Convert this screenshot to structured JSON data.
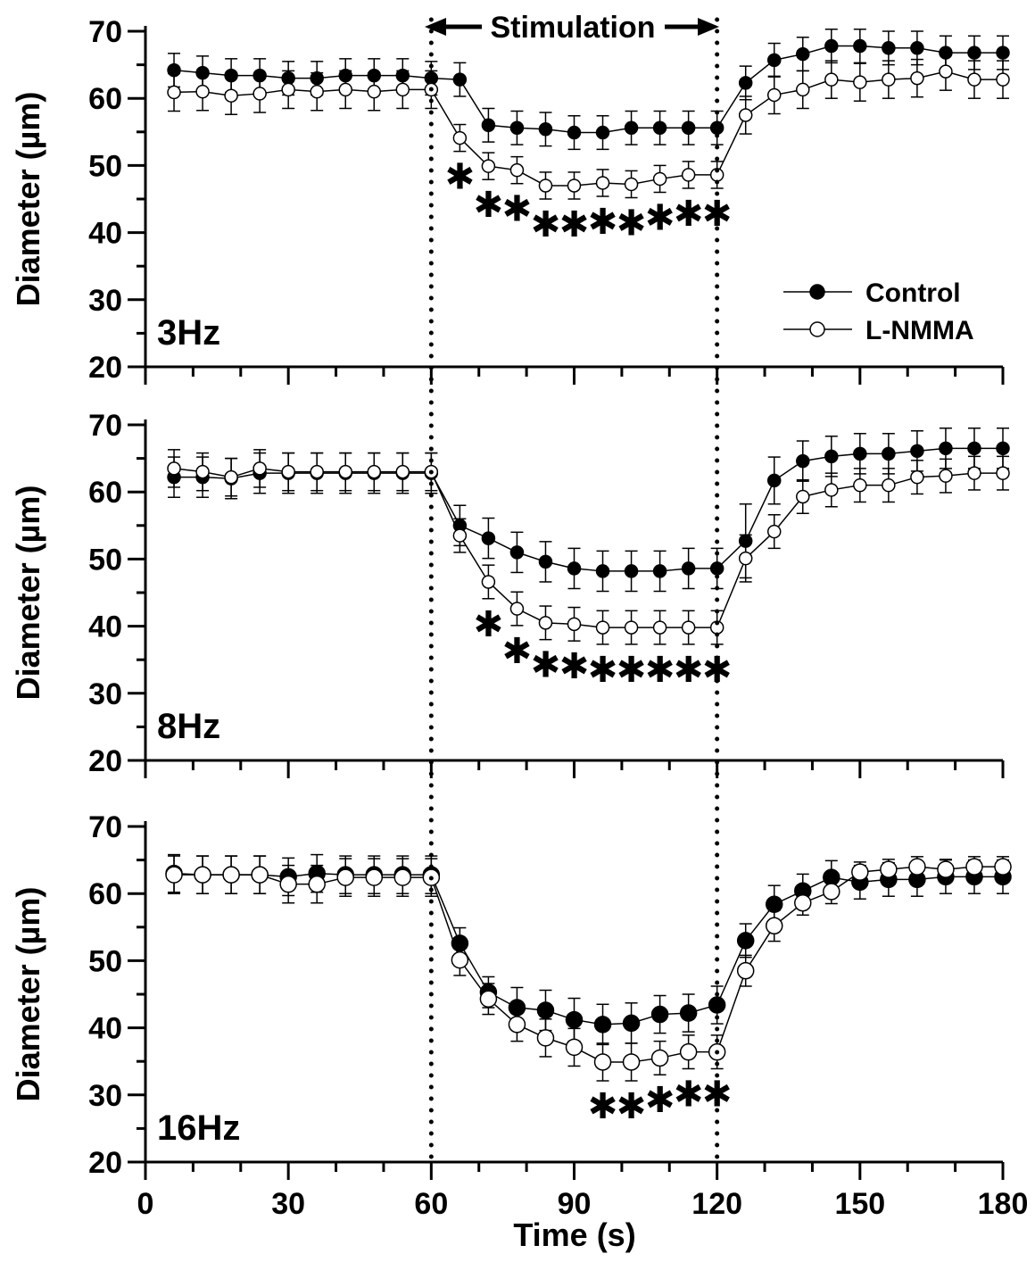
{
  "chart_data": {
    "type": "line",
    "xlabel": "Time (s)",
    "ylabel": "Diameter (µm)",
    "xlim": [
      0,
      180
    ],
    "xticks": [
      0,
      30,
      60,
      90,
      120,
      150,
      180
    ],
    "ylim": [
      20,
      70
    ],
    "yticks": [
      20,
      30,
      40,
      50,
      60,
      70
    ],
    "stimulation": {
      "label": "Stimulation",
      "start": 60,
      "end": 120
    },
    "legend": {
      "position": "lower-right of top panel",
      "entries": [
        "Control",
        "L-NMMA"
      ]
    },
    "x": [
      6,
      12,
      18,
      24,
      30,
      36,
      42,
      48,
      54,
      60,
      66,
      72,
      78,
      84,
      90,
      96,
      102,
      108,
      114,
      120,
      126,
      132,
      138,
      144,
      150,
      156,
      162,
      168,
      174,
      180
    ],
    "panels": [
      {
        "label": "3Hz",
        "series": [
          {
            "name": "Control",
            "marker": "filled",
            "values": [
              64.2,
              63.8,
              63.4,
              63.4,
              63.0,
              63.0,
              63.4,
              63.4,
              63.4,
              63.0,
              62.8,
              56.0,
              55.6,
              55.4,
              54.9,
              54.9,
              55.6,
              55.6,
              55.6,
              55.6,
              62.3,
              65.7,
              66.6,
              67.8,
              67.8,
              67.5,
              67.5,
              66.8,
              66.8,
              66.8
            ],
            "errors": [
              2.5,
              2.5,
              2.5,
              2.5,
              2.5,
              2.5,
              2.5,
              2.5,
              2.5,
              2.5,
              2.5,
              2.5,
              2.5,
              2.5,
              2.5,
              2.5,
              2.5,
              2.5,
              2.5,
              2.5,
              2.5,
              2.5,
              2.5,
              2.5,
              2.5,
              2.5,
              2.5,
              2.5,
              2.5,
              2.5
            ]
          },
          {
            "name": "L-NMMA",
            "marker": "open",
            "values": [
              60.9,
              61.0,
              60.4,
              60.7,
              61.3,
              61.0,
              61.3,
              61.0,
              61.3,
              61.3,
              54.1,
              49.9,
              49.3,
              47.0,
              47.0,
              47.4,
              47.2,
              48.0,
              48.6,
              48.6,
              57.5,
              60.5,
              61.3,
              62.8,
              62.4,
              62.8,
              63.0,
              64.0,
              62.8,
              62.8
            ],
            "errors": [
              2.8,
              2.8,
              2.8,
              2.8,
              2.8,
              2.8,
              2.8,
              2.8,
              2.8,
              2.8,
              2.0,
              2.0,
              2.0,
              2.0,
              2.0,
              2.0,
              2.0,
              2.0,
              2.0,
              2.0,
              2.8,
              2.8,
              2.8,
              2.8,
              2.8,
              2.8,
              2.8,
              2.8,
              2.8,
              2.8
            ]
          }
        ],
        "significance_x": [
          66,
          72,
          78,
          84,
          90,
          96,
          102,
          108,
          114,
          120
        ]
      },
      {
        "label": "8Hz",
        "series": [
          {
            "name": "Control",
            "marker": "filled",
            "values": [
              62.2,
              62.2,
              62.0,
              62.8,
              62.8,
              62.8,
              62.8,
              62.8,
              62.8,
              62.8,
              55.0,
              53.1,
              51.0,
              49.6,
              48.6,
              48.2,
              48.2,
              48.2,
              48.6,
              48.6,
              52.7,
              61.7,
              64.6,
              65.3,
              65.7,
              65.7,
              66.1,
              66.5,
              66.5,
              66.5
            ],
            "errors": [
              3.0,
              3.0,
              3.0,
              3.0,
              3.0,
              3.0,
              3.0,
              3.0,
              3.0,
              3.0,
              3.0,
              3.0,
              3.0,
              3.0,
              3.0,
              3.0,
              3.0,
              3.0,
              3.0,
              3.0,
              5.5,
              3.5,
              3.0,
              3.0,
              3.0,
              3.0,
              3.0,
              3.0,
              3.0,
              3.0
            ]
          },
          {
            "name": "L-NMMA",
            "marker": "open",
            "values": [
              63.5,
              63.0,
              62.2,
              63.5,
              63.0,
              63.0,
              63.0,
              63.0,
              63.0,
              63.0,
              53.5,
              46.6,
              42.6,
              40.5,
              40.3,
              39.8,
              39.8,
              39.8,
              39.8,
              39.8,
              50.1,
              54.1,
              59.3,
              60.3,
              61.0,
              61.0,
              62.2,
              62.4,
              62.8,
              62.8
            ],
            "errors": [
              2.8,
              2.8,
              2.8,
              2.8,
              2.8,
              2.8,
              2.8,
              2.8,
              2.8,
              2.8,
              2.5,
              2.5,
              2.5,
              2.5,
              2.5,
              2.5,
              2.5,
              2.5,
              2.5,
              2.5,
              3.5,
              2.5,
              2.5,
              2.5,
              2.5,
              2.5,
              2.5,
              2.5,
              2.5,
              2.5
            ]
          }
        ],
        "significance_x": [
          72,
          78,
          84,
          90,
          96,
          102,
          108,
          114,
          120
        ]
      },
      {
        "label": "16Hz",
        "series": [
          {
            "name": "Control",
            "marker": "filled",
            "values": [
              63.0,
              62.8,
              62.8,
              62.8,
              62.5,
              63.0,
              62.8,
              62.8,
              62.8,
              62.8,
              52.6,
              45.3,
              43.0,
              42.6,
              41.2,
              40.5,
              40.7,
              42.0,
              42.2,
              43.4,
              53.0,
              58.4,
              60.4,
              62.4,
              61.7,
              62.1,
              62.1,
              62.5,
              62.5,
              62.5
            ],
            "errors": [
              2.8,
              2.8,
              2.8,
              2.8,
              2.8,
              2.8,
              2.8,
              2.8,
              2.8,
              2.8,
              2.3,
              2.3,
              3.0,
              3.0,
              3.2,
              3.0,
              3.0,
              2.8,
              2.8,
              2.8,
              2.5,
              2.8,
              2.5,
              2.5,
              2.5,
              2.5,
              2.5,
              2.5,
              2.5,
              2.5
            ]
          },
          {
            "name": "L-NMMA",
            "marker": "open",
            "values": [
              62.8,
              62.8,
              62.8,
              62.8,
              61.4,
              61.4,
              62.4,
              62.4,
              62.4,
              62.4,
              50.1,
              44.3,
              40.5,
              38.5,
              37.1,
              34.9,
              34.9,
              35.5,
              36.4,
              36.4,
              48.5,
              55.2,
              58.6,
              60.3,
              63.2,
              63.6,
              64.0,
              63.6,
              64.0,
              64.0
            ],
            "errors": [
              2.8,
              2.8,
              2.8,
              2.8,
              2.8,
              2.8,
              2.8,
              2.8,
              2.8,
              2.8,
              2.3,
              2.3,
              2.5,
              2.8,
              2.8,
              2.8,
              2.8,
              2.5,
              2.5,
              2.5,
              2.3,
              2.3,
              1.8,
              1.8,
              1.5,
              1.5,
              1.5,
              1.5,
              1.5,
              1.5
            ]
          }
        ],
        "significance_x": [
          96,
          102,
          108,
          114,
          120
        ]
      }
    ]
  }
}
